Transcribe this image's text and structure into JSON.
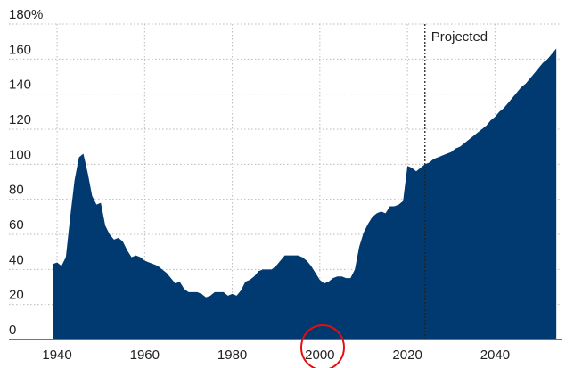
{
  "chart_data": {
    "type": "area",
    "x": [
      1939,
      1940,
      1941,
      1942,
      1943,
      1944,
      1945,
      1946,
      1947,
      1948,
      1949,
      1950,
      1951,
      1952,
      1953,
      1954,
      1955,
      1956,
      1957,
      1958,
      1959,
      1960,
      1961,
      1962,
      1963,
      1964,
      1965,
      1966,
      1967,
      1968,
      1969,
      1970,
      1971,
      1972,
      1973,
      1974,
      1975,
      1976,
      1977,
      1978,
      1979,
      1980,
      1981,
      1982,
      1983,
      1984,
      1985,
      1986,
      1987,
      1988,
      1989,
      1990,
      1991,
      1992,
      1993,
      1994,
      1995,
      1996,
      1997,
      1998,
      1999,
      2000,
      2001,
      2002,
      2003,
      2004,
      2005,
      2006,
      2007,
      2008,
      2009,
      2010,
      2011,
      2012,
      2013,
      2014,
      2015,
      2016,
      2017,
      2018,
      2019,
      2020,
      2021,
      2022,
      2023,
      2024,
      2025,
      2026,
      2027,
      2028,
      2029,
      2030,
      2031,
      2032,
      2033,
      2034,
      2035,
      2036,
      2037,
      2038,
      2039,
      2040,
      2041,
      2042,
      2043,
      2044,
      2045,
      2046,
      2047,
      2048,
      2049,
      2050,
      2051,
      2052,
      2053,
      2054
    ],
    "values": [
      43,
      44,
      42,
      47,
      70,
      91,
      104,
      106,
      95,
      82,
      77,
      78,
      65,
      60,
      57,
      58,
      56,
      51,
      47,
      48,
      47,
      45,
      44,
      43,
      42,
      40,
      38,
      35,
      32,
      33,
      29,
      27,
      27,
      27,
      26,
      24,
      25,
      27,
      27,
      27,
      25,
      26,
      25,
      28,
      33,
      34,
      36,
      39,
      40,
      40,
      40,
      42,
      45,
      48,
      48,
      48,
      48,
      47,
      45,
      42,
      38,
      34,
      32,
      33,
      35,
      36,
      36,
      35,
      35,
      40,
      53,
      61,
      66,
      70,
      72,
      73,
      72,
      76,
      76,
      77,
      79,
      99,
      98,
      96,
      98,
      100,
      101,
      103,
      104,
      105,
      106,
      107,
      109,
      110,
      112,
      114,
      116,
      118,
      120,
      122,
      125,
      127,
      130,
      132,
      135,
      138,
      141,
      144,
      146,
      149,
      152,
      155,
      158,
      160,
      163,
      166
    ],
    "color": "#003a70",
    "xlim": [
      1929,
      2056
    ],
    "xticks": [
      1940,
      1960,
      1980,
      2000,
      2020,
      2040
    ],
    "ylim": [
      0,
      180
    ],
    "yticks": [
      0,
      20,
      40,
      60,
      80,
      100,
      120,
      140,
      160,
      {
        "value": 180,
        "label": "180%"
      }
    ],
    "grid": true,
    "annotations": [
      {
        "text": "Projected",
        "x": 2024
      }
    ]
  }
}
